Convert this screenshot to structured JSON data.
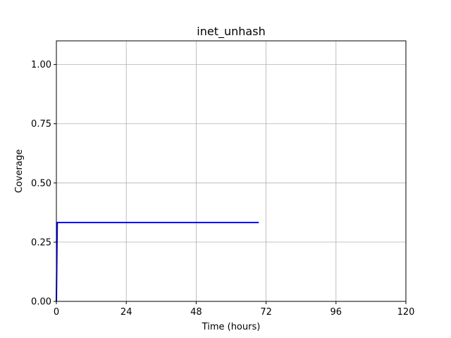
{
  "chart_data": {
    "type": "line",
    "title": "inet_unhash",
    "xlabel": "Time (hours)",
    "ylabel": "Coverage",
    "xlim": [
      0,
      120
    ],
    "ylim": [
      0,
      1.1
    ],
    "xticks": [
      0,
      24,
      48,
      72,
      96,
      120
    ],
    "yticks": [
      0.0,
      0.25,
      0.5,
      0.75,
      1.0
    ],
    "xtick_labels": [
      "0",
      "24",
      "48",
      "72",
      "96",
      "120"
    ],
    "ytick_labels": [
      "0.00",
      "0.25",
      "0.50",
      "0.75",
      "1.00"
    ],
    "grid": true,
    "series": [
      {
        "color": "#0000ff",
        "x": [
          0,
          0.3,
          0.3,
          69.5
        ],
        "y": [
          0,
          0.333,
          0.333,
          0.333
        ]
      }
    ]
  }
}
